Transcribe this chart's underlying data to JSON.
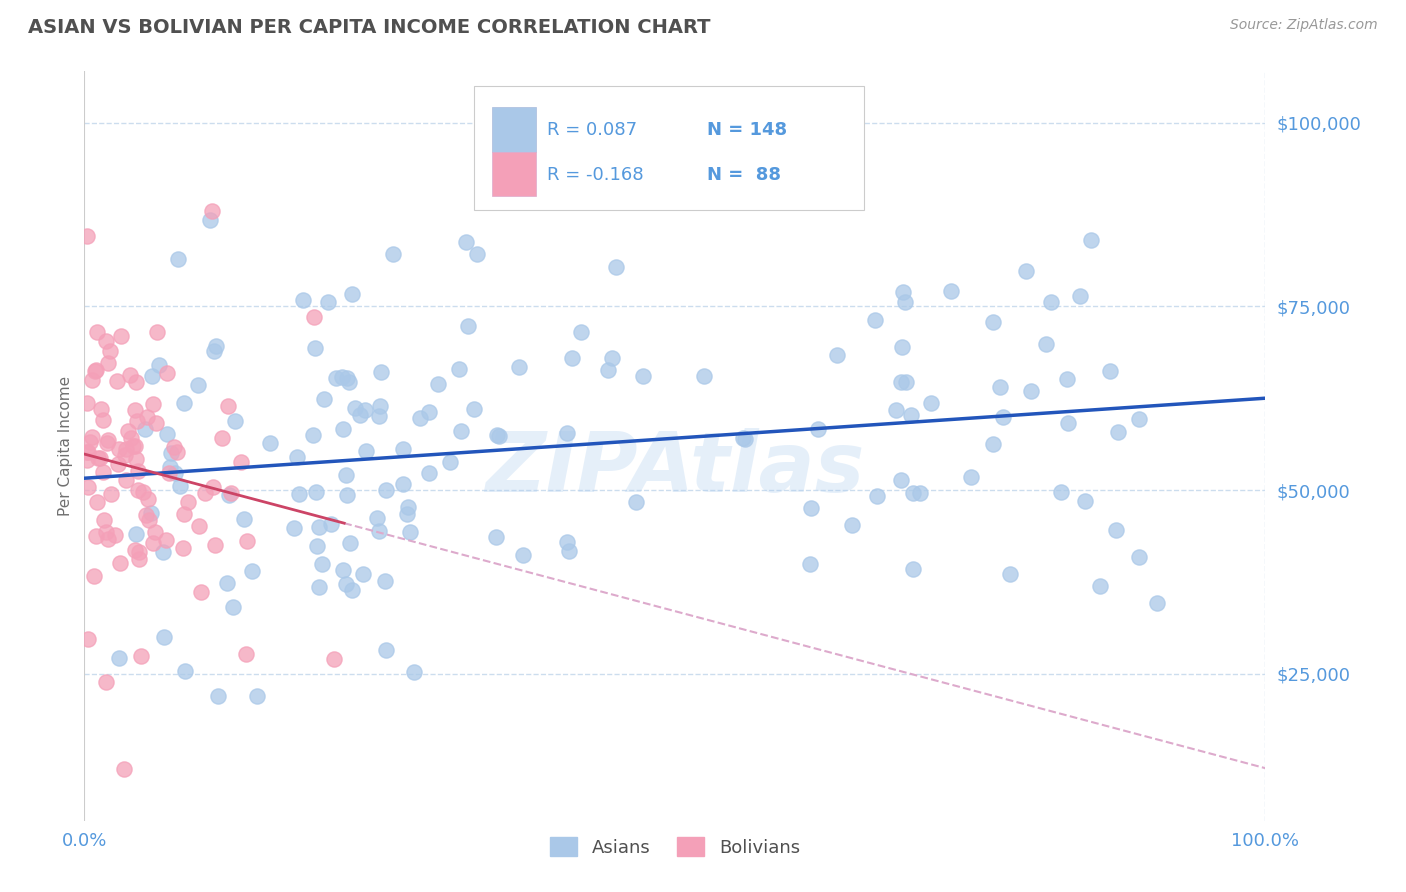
{
  "title": "ASIAN VS BOLIVIAN PER CAPITA INCOME CORRELATION CHART",
  "source_text": "Source: ZipAtlas.com",
  "ylabel": "Per Capita Income",
  "xlim": [
    0.0,
    1.0
  ],
  "ylim": [
    5000,
    107000
  ],
  "yticks": [
    25000,
    50000,
    75000,
    100000
  ],
  "ytick_labels": [
    "$25,000",
    "$50,000",
    "$75,000",
    "$100,000"
  ],
  "xticks": [
    0.0,
    1.0
  ],
  "xtick_labels": [
    "0.0%",
    "100.0%"
  ],
  "asian_color": "#aac8e8",
  "bolivian_color": "#f4a0b8",
  "asian_line_color": "#2255bb",
  "bolivian_line_solid_color": "#cc4466",
  "bolivian_line_dash_color": "#ddaacc",
  "R_asian": 0.087,
  "N_asian": 148,
  "R_bolivian": -0.168,
  "N_bolivian": 88,
  "legend_label_asian": "Asians",
  "legend_label_bolivian": "Bolivians",
  "watermark": "ZIPAtlas",
  "watermark_color": "#aaccee",
  "title_color": "#505050",
  "axis_label_color": "#5599dd",
  "grid_color": "#ccddee",
  "background_color": "#ffffff",
  "legend_text_color": "#5599dd",
  "source_color": "#999999"
}
